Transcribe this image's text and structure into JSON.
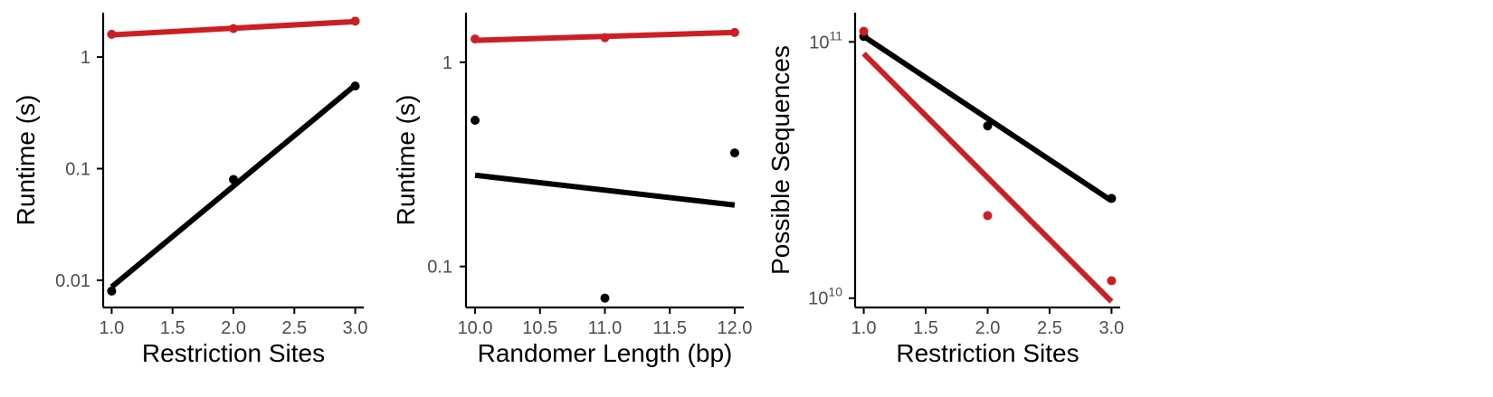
{
  "chart_data": [
    {
      "type": "scatter",
      "xlabel": "Restriction Sites",
      "ylabel": "Runtime (s)",
      "y_scale": "log",
      "xlim": [
        0.93,
        3.07
      ],
      "ylim": [
        0.0057,
        2.5
      ],
      "x_ticks": [
        1.0,
        1.5,
        2.0,
        2.5,
        3.0
      ],
      "x_tick_labels": [
        "1.0",
        "1.5",
        "2.0",
        "2.5",
        "3.0"
      ],
      "y_ticks": [
        0.01,
        0.1,
        1
      ],
      "y_tick_labels": [
        "0.01",
        "0.1",
        "1"
      ],
      "grid": false,
      "legend": "none",
      "series": [
        {
          "color": "#cc1f24",
          "x": [
            1.0,
            2.0,
            3.0
          ],
          "y": [
            1.6,
            1.8,
            2.1
          ],
          "fit": [
            [
              1.0,
              1.58
            ],
            [
              3.0,
              2.08
            ]
          ]
        },
        {
          "color": "#000000",
          "x": [
            1.0,
            2.0,
            3.0
          ],
          "y": [
            0.008,
            0.08,
            0.55
          ],
          "fit": [
            [
              1.0,
              0.0087
            ],
            [
              3.0,
              0.56
            ]
          ]
        }
      ]
    },
    {
      "type": "scatter",
      "xlabel": "Randomer Length (bp)",
      "ylabel": "Runtime (s)",
      "y_scale": "log",
      "xlim": [
        9.93,
        12.07
      ],
      "ylim": [
        0.063,
        1.75
      ],
      "x_ticks": [
        10.0,
        10.5,
        11.0,
        11.5,
        12.0
      ],
      "x_tick_labels": [
        "10.0",
        "10.5",
        "11.0",
        "11.5",
        "12.0"
      ],
      "y_ticks": [
        0.1,
        1
      ],
      "y_tick_labels": [
        "0.1",
        "1"
      ],
      "grid": false,
      "legend": "none",
      "series": [
        {
          "color": "#cc1f24",
          "x": [
            10.0,
            11.0,
            12.0
          ],
          "y": [
            1.3,
            1.32,
            1.4
          ],
          "fit": [
            [
              10.0,
              1.28
            ],
            [
              12.0,
              1.4
            ]
          ]
        },
        {
          "color": "#000000",
          "x": [
            10.0,
            11.0,
            12.0
          ],
          "y": [
            0.52,
            0.07,
            0.36
          ],
          "fit": [
            [
              10.0,
              0.28
            ],
            [
              12.0,
              0.2
            ]
          ]
        }
      ]
    },
    {
      "type": "scatter",
      "xlabel": "Restriction Sites",
      "ylabel": "Possible Sequences",
      "y_scale": "log",
      "xlim": [
        0.93,
        3.07
      ],
      "ylim": [
        9200000000,
        130000000000
      ],
      "x_ticks": [
        1.0,
        1.5,
        2.0,
        2.5,
        3.0
      ],
      "x_tick_labels": [
        "1.0",
        "1.5",
        "2.0",
        "2.5",
        "3.0"
      ],
      "y_ticks": [
        10000000000,
        100000000000
      ],
      "y_tick_labels": [
        {
          "base": "10",
          "exp": "10"
        },
        {
          "base": "10",
          "exp": "11"
        }
      ],
      "grid": false,
      "legend": "none",
      "series": [
        {
          "color": "#000000",
          "x": [
            1.0,
            2.0,
            3.0
          ],
          "y": [
            105000000000,
            47000000000,
            24500000000
          ],
          "fit": [
            [
              1.0,
              105000000000
            ],
            [
              3.0,
              24000000000
            ]
          ]
        },
        {
          "color": "#cc1f24",
          "x": [
            1.0,
            2.0,
            3.0
          ],
          "y": [
            110000000000,
            21000000000,
            11700000000
          ],
          "fit": [
            [
              1.0,
              90000000000
            ],
            [
              3.0,
              9700000000
            ]
          ]
        }
      ]
    }
  ]
}
